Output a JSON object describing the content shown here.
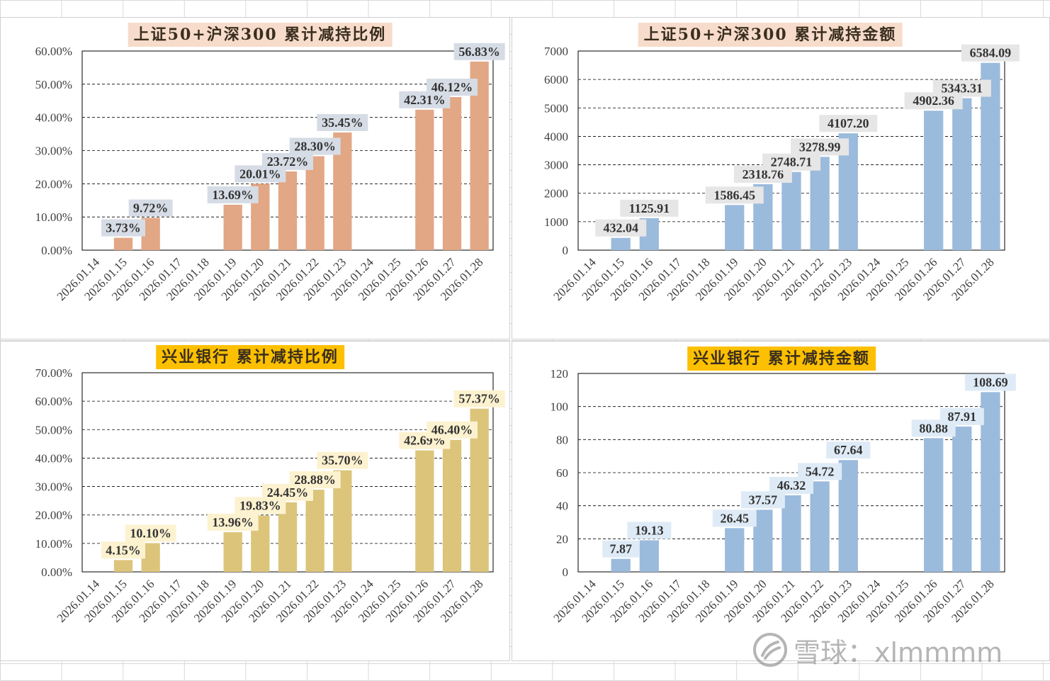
{
  "watermark": {
    "text": "雪球：xlmmmm",
    "icon": "xueqiu-logo-icon"
  },
  "chart_data": [
    {
      "type": "bar",
      "title": "上证50+沪深300 累计减持比例",
      "title_bg": "#f7dccb",
      "bar_color": "#e2a785",
      "label_bg": "#d6dce5",
      "categories": [
        "2026.01.14",
        "2026.01.15",
        "2026.01.16",
        "2026.01.17",
        "2026.01.18",
        "2026.01.19",
        "2026.01.20",
        "2026.01.21",
        "2026.01.22",
        "2026.01.23",
        "2026.01.24",
        "2026.01.25",
        "2026.01.26",
        "2026.01.27",
        "2026.01.28"
      ],
      "values": [
        null,
        3.73,
        9.72,
        null,
        null,
        13.69,
        20.01,
        23.72,
        28.3,
        35.45,
        null,
        null,
        42.31,
        46.12,
        56.83
      ],
      "data_labels": [
        "",
        "3.73%",
        "9.72%",
        "",
        "",
        "13.69%",
        "20.01%",
        "23.72%",
        "28.30%",
        "35.45%",
        "",
        "",
        "42.31%",
        "46.12%",
        "56.83%"
      ],
      "ylim": [
        0,
        60
      ],
      "yticks": [
        "0.00%",
        "10.00%",
        "20.00%",
        "30.00%",
        "40.00%",
        "50.00%",
        "60.00%"
      ],
      "grid": true
    },
    {
      "type": "bar",
      "title": "上证50+沪深300 累计减持金额",
      "title_bg": "#f7dccb",
      "bar_color": "#9bbbdd",
      "label_bg": "#e7e6e6",
      "categories": [
        "2026.01.14",
        "2026.01.15",
        "2026.01.16",
        "2026.01.17",
        "2026.01.18",
        "2026.01.19",
        "2026.01.20",
        "2026.01.21",
        "2026.01.22",
        "2026.01.23",
        "2026.01.24",
        "2026.01.25",
        "2026.01.26",
        "2026.01.27",
        "2026.01.28"
      ],
      "values": [
        null,
        432.04,
        1125.91,
        null,
        null,
        1586.45,
        2318.76,
        2748.71,
        3278.99,
        4107.2,
        null,
        null,
        4902.36,
        5343.31,
        6584.09
      ],
      "data_labels": [
        "",
        "432.04",
        "1125.91",
        "",
        "",
        "1586.45",
        "2318.76",
        "2748.71",
        "3278.99",
        "4107.20",
        "",
        "",
        "4902.36",
        "5343.31",
        "6584.09"
      ],
      "ylim": [
        0,
        7000
      ],
      "yticks": [
        "0",
        "1000",
        "2000",
        "3000",
        "4000",
        "5000",
        "6000",
        "7000"
      ],
      "grid": true
    },
    {
      "type": "bar",
      "title": "兴业银行 累计减持比例",
      "title_bg": "#fdc000",
      "bar_color": "#dcc57a",
      "label_bg": "#fdf2d0",
      "categories": [
        "2026.01.14",
        "2026.01.15",
        "2026.01.16",
        "2026.01.17",
        "2026.01.18",
        "2026.01.19",
        "2026.01.20",
        "2026.01.21",
        "2026.01.22",
        "2026.01.23",
        "2026.01.24",
        "2026.01.25",
        "2026.01.26",
        "2026.01.27",
        "2026.01.28"
      ],
      "values": [
        null,
        4.15,
        10.1,
        null,
        null,
        13.96,
        19.83,
        24.45,
        28.88,
        35.7,
        null,
        null,
        42.69,
        46.4,
        57.37
      ],
      "data_labels": [
        "",
        "4.15%",
        "10.10%",
        "",
        "",
        "13.96%",
        "19.83%",
        "24.45%",
        "28.88%",
        "35.70%",
        "",
        "",
        "42.69%",
        "46.40%",
        "57.37%"
      ],
      "ylim": [
        0,
        70
      ],
      "yticks": [
        "0.00%",
        "10.00%",
        "20.00%",
        "30.00%",
        "40.00%",
        "50.00%",
        "60.00%",
        "70.00%"
      ],
      "grid": true
    },
    {
      "type": "bar",
      "title": "兴业银行 累计减持金额",
      "title_bg": "#fdc000",
      "bar_color": "#9bbbdd",
      "label_bg": "#deebf7",
      "categories": [
        "2026.01.14",
        "2026.01.15",
        "2026.01.16",
        "2026.01.17",
        "2026.01.18",
        "2026.01.19",
        "2026.01.20",
        "2026.01.21",
        "2026.01.22",
        "2026.01.23",
        "2026.01.24",
        "2026.01.25",
        "2026.01.26",
        "2026.01.27",
        "2026.01.28"
      ],
      "values": [
        null,
        7.87,
        19.13,
        null,
        null,
        26.45,
        37.57,
        46.32,
        54.72,
        67.64,
        null,
        null,
        80.88,
        87.91,
        108.69
      ],
      "data_labels": [
        "",
        "7.87",
        "19.13",
        "",
        "",
        "26.45",
        "37.57",
        "46.32",
        "54.72",
        "67.64",
        "",
        "",
        "80.88",
        "87.91",
        "108.69"
      ],
      "ylim": [
        0,
        120
      ],
      "yticks": [
        "0",
        "20",
        "40",
        "60",
        "80",
        "100",
        "120"
      ],
      "grid": true
    }
  ]
}
